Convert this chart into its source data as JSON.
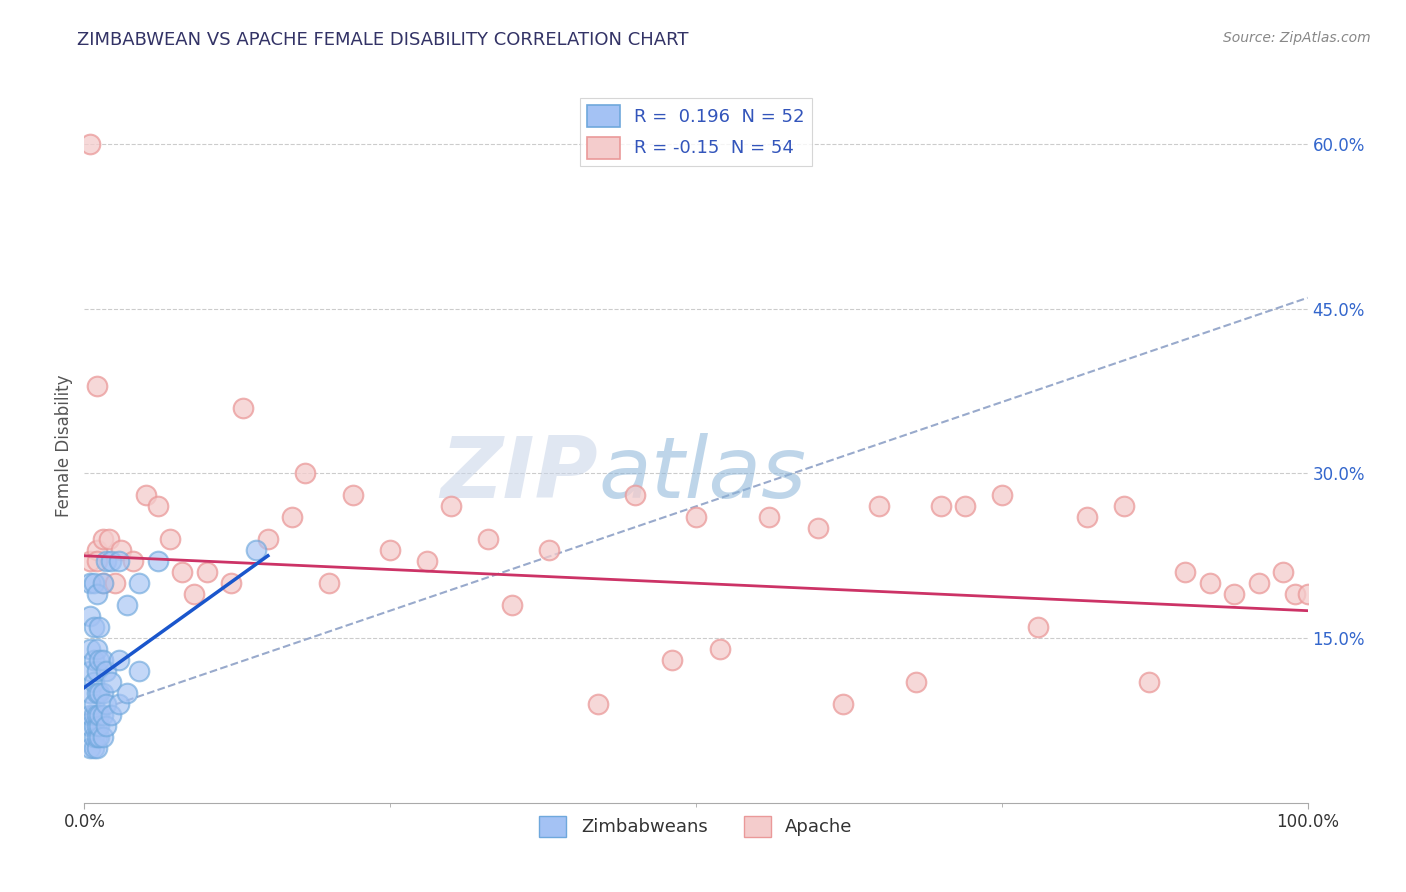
{
  "title": "ZIMBABWEAN VS APACHE FEMALE DISABILITY CORRELATION CHART",
  "source": "Source: ZipAtlas.com",
  "ylabel": "Female Disability",
  "watermark_zip": "ZIP",
  "watermark_atlas": "atlas",
  "legend_blue": {
    "label": "Zimbabweans",
    "R": 0.196,
    "N": 52
  },
  "legend_pink": {
    "label": "Apache",
    "R": -0.15,
    "N": 54
  },
  "xlim": [
    0.0,
    1.0
  ],
  "ylim": [
    0.0,
    0.65
  ],
  "yticks": [
    0.15,
    0.3,
    0.45,
    0.6
  ],
  "ytick_labels": [
    "15.0%",
    "30.0%",
    "45.0%",
    "60.0%"
  ],
  "xticks": [
    0.0,
    1.0
  ],
  "xtick_labels": [
    "0.0%",
    "100.0%"
  ],
  "grid_color": "#cccccc",
  "background_color": "#ffffff",
  "blue_scatter_color_face": "#a4c2f4",
  "blue_scatter_color_edge": "#6fa8dc",
  "pink_scatter_color_face": "#f4cccc",
  "pink_scatter_color_edge": "#ea9999",
  "blue_line_color": "#1a56cc",
  "pink_line_color": "#cc3366",
  "dashed_line_color": "#99aacc",
  "blue_scatter_x": [
    0.005,
    0.005,
    0.005,
    0.005,
    0.005,
    0.005,
    0.005,
    0.005,
    0.008,
    0.008,
    0.008,
    0.008,
    0.008,
    0.008,
    0.008,
    0.008,
    0.008,
    0.01,
    0.01,
    0.01,
    0.01,
    0.01,
    0.01,
    0.01,
    0.01,
    0.012,
    0.012,
    0.012,
    0.012,
    0.012,
    0.012,
    0.015,
    0.015,
    0.015,
    0.015,
    0.015,
    0.018,
    0.018,
    0.018,
    0.018,
    0.022,
    0.022,
    0.022,
    0.028,
    0.028,
    0.028,
    0.035,
    0.035,
    0.045,
    0.045,
    0.06,
    0.14
  ],
  "blue_scatter_y": [
    0.05,
    0.07,
    0.08,
    0.1,
    0.12,
    0.14,
    0.17,
    0.2,
    0.05,
    0.06,
    0.07,
    0.08,
    0.09,
    0.11,
    0.13,
    0.16,
    0.2,
    0.05,
    0.06,
    0.07,
    0.08,
    0.1,
    0.12,
    0.14,
    0.19,
    0.06,
    0.07,
    0.08,
    0.1,
    0.13,
    0.16,
    0.06,
    0.08,
    0.1,
    0.13,
    0.2,
    0.07,
    0.09,
    0.12,
    0.22,
    0.08,
    0.11,
    0.22,
    0.09,
    0.13,
    0.22,
    0.1,
    0.18,
    0.12,
    0.2,
    0.22,
    0.23
  ],
  "pink_scatter_x": [
    0.005,
    0.005,
    0.01,
    0.01,
    0.01,
    0.015,
    0.015,
    0.02,
    0.025,
    0.03,
    0.04,
    0.05,
    0.06,
    0.07,
    0.08,
    0.09,
    0.1,
    0.12,
    0.13,
    0.15,
    0.17,
    0.18,
    0.2,
    0.22,
    0.25,
    0.28,
    0.3,
    0.33,
    0.35,
    0.38,
    0.42,
    0.45,
    0.48,
    0.5,
    0.52,
    0.56,
    0.6,
    0.62,
    0.65,
    0.68,
    0.7,
    0.72,
    0.75,
    0.78,
    0.82,
    0.85,
    0.87,
    0.9,
    0.92,
    0.94,
    0.96,
    0.98,
    0.99,
    1.0
  ],
  "pink_scatter_y": [
    0.6,
    0.22,
    0.23,
    0.22,
    0.38,
    0.24,
    0.2,
    0.24,
    0.2,
    0.23,
    0.22,
    0.28,
    0.27,
    0.24,
    0.21,
    0.19,
    0.21,
    0.2,
    0.36,
    0.24,
    0.26,
    0.3,
    0.2,
    0.28,
    0.23,
    0.22,
    0.27,
    0.24,
    0.18,
    0.23,
    0.09,
    0.28,
    0.13,
    0.26,
    0.14,
    0.26,
    0.25,
    0.09,
    0.27,
    0.11,
    0.27,
    0.27,
    0.28,
    0.16,
    0.26,
    0.27,
    0.11,
    0.21,
    0.2,
    0.19,
    0.2,
    0.21,
    0.19,
    0.19
  ],
  "blue_line_x": [
    0.0,
    0.15
  ],
  "blue_line_y": [
    0.105,
    0.225
  ],
  "dashed_line_x": [
    0.0,
    1.0
  ],
  "dashed_line_y": [
    0.08,
    0.46
  ],
  "pink_line_x": [
    0.0,
    1.0
  ],
  "pink_line_y": [
    0.225,
    0.175
  ]
}
